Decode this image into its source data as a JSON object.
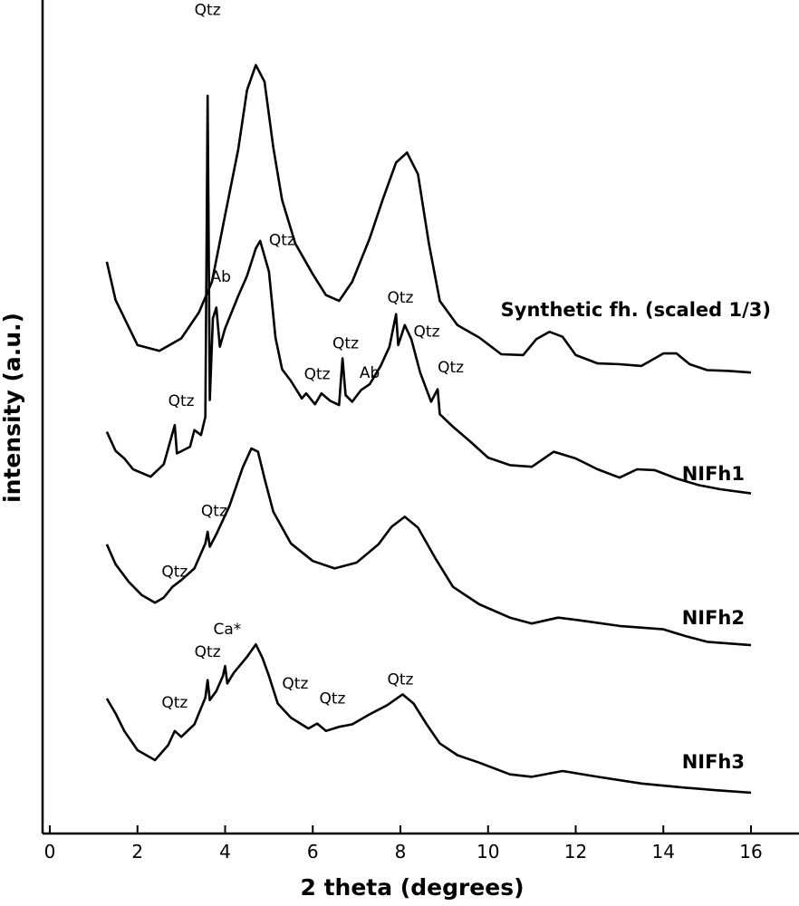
{
  "chart_data": {
    "type": "line",
    "xlabel": "2 theta (degrees)",
    "ylabel": "intensity (a.u.)",
    "xlim": [
      0,
      16
    ],
    "xticks": [
      0,
      2,
      4,
      6,
      8,
      10,
      12,
      14,
      16
    ],
    "xtick_labels": [
      "0",
      "2",
      "4",
      "6",
      "8",
      "10",
      "12",
      "14",
      "16"
    ],
    "y_units": "arbitrary offset intensity, 0 = bottom axis, 100 = top of plot",
    "grid": false,
    "series": [
      {
        "name": "Synthetic fh. (scaled 1/3)",
        "points": [
          [
            1.3,
            68.6
          ],
          [
            1.5,
            64.0
          ],
          [
            2.0,
            58.6
          ],
          [
            2.5,
            57.9
          ],
          [
            3.0,
            59.4
          ],
          [
            3.4,
            62.5
          ],
          [
            3.7,
            66.2
          ],
          [
            4.0,
            74.2
          ],
          [
            4.3,
            82.1
          ],
          [
            4.5,
            89.2
          ],
          [
            4.7,
            92.2
          ],
          [
            4.9,
            90.2
          ],
          [
            5.1,
            82.3
          ],
          [
            5.3,
            76.0
          ],
          [
            5.6,
            70.8
          ],
          [
            6.0,
            67.1
          ],
          [
            6.3,
            64.6
          ],
          [
            6.6,
            63.9
          ],
          [
            6.9,
            66.2
          ],
          [
            7.3,
            71.4
          ],
          [
            7.6,
            76.1
          ],
          [
            7.9,
            80.5
          ],
          [
            8.15,
            81.7
          ],
          [
            8.4,
            79.1
          ],
          [
            8.65,
            70.8
          ],
          [
            8.9,
            63.9
          ],
          [
            9.3,
            61.0
          ],
          [
            9.8,
            59.5
          ],
          [
            10.3,
            57.5
          ],
          [
            10.8,
            57.4
          ],
          [
            11.1,
            59.3
          ],
          [
            11.4,
            60.2
          ],
          [
            11.7,
            59.6
          ],
          [
            12.0,
            57.4
          ],
          [
            12.5,
            56.4
          ],
          [
            13.0,
            56.3
          ],
          [
            13.5,
            56.1
          ],
          [
            14.0,
            57.6
          ],
          [
            14.3,
            57.6
          ],
          [
            14.6,
            56.3
          ],
          [
            15.0,
            55.6
          ],
          [
            15.5,
            55.5
          ],
          [
            16.0,
            55.3
          ]
        ]
      },
      {
        "name": "NIFh1",
        "points": [
          [
            1.3,
            48.2
          ],
          [
            1.5,
            45.9
          ],
          [
            1.7,
            45.0
          ],
          [
            1.9,
            43.7
          ],
          [
            2.3,
            42.8
          ],
          [
            2.6,
            44.3
          ],
          [
            2.75,
            47.1
          ],
          [
            2.85,
            49.0
          ],
          [
            2.9,
            45.6
          ],
          [
            3.2,
            46.4
          ],
          [
            3.3,
            48.4
          ],
          [
            3.45,
            47.8
          ],
          [
            3.55,
            50.0
          ],
          [
            3.6,
            88.5
          ],
          [
            3.65,
            52.0
          ],
          [
            3.72,
            61.8
          ],
          [
            3.8,
            63.1
          ],
          [
            3.88,
            58.4
          ],
          [
            4.0,
            60.6
          ],
          [
            4.3,
            64.5
          ],
          [
            4.5,
            66.9
          ],
          [
            4.7,
            70.2
          ],
          [
            4.8,
            71.1
          ],
          [
            5.0,
            67.4
          ],
          [
            5.15,
            59.5
          ],
          [
            5.3,
            55.7
          ],
          [
            5.5,
            54.3
          ],
          [
            5.75,
            52.2
          ],
          [
            5.85,
            52.8
          ],
          [
            6.05,
            51.5
          ],
          [
            6.2,
            52.8
          ],
          [
            6.4,
            51.9
          ],
          [
            6.6,
            51.4
          ],
          [
            6.68,
            57.0
          ],
          [
            6.75,
            52.6
          ],
          [
            6.9,
            51.8
          ],
          [
            7.1,
            53.2
          ],
          [
            7.3,
            53.9
          ],
          [
            7.55,
            56.1
          ],
          [
            7.75,
            58.4
          ],
          [
            7.9,
            62.3
          ],
          [
            7.95,
            58.6
          ],
          [
            8.1,
            61.0
          ],
          [
            8.25,
            59.3
          ],
          [
            8.45,
            55.3
          ],
          [
            8.7,
            51.8
          ],
          [
            8.85,
            53.3
          ],
          [
            8.9,
            50.3
          ],
          [
            9.2,
            48.8
          ],
          [
            9.6,
            47.0
          ],
          [
            10.0,
            45.1
          ],
          [
            10.5,
            44.2
          ],
          [
            11.0,
            44.0
          ],
          [
            11.5,
            45.8
          ],
          [
            12.0,
            45.0
          ],
          [
            12.5,
            43.7
          ],
          [
            13.0,
            42.7
          ],
          [
            13.4,
            43.7
          ],
          [
            13.8,
            43.6
          ],
          [
            14.3,
            42.6
          ],
          [
            14.8,
            41.8
          ],
          [
            15.3,
            41.3
          ],
          [
            16.0,
            40.8
          ]
        ]
      },
      {
        "name": "NIFh2",
        "points": [
          [
            1.3,
            34.7
          ],
          [
            1.5,
            32.3
          ],
          [
            1.8,
            30.2
          ],
          [
            2.1,
            28.6
          ],
          [
            2.4,
            27.7
          ],
          [
            2.6,
            28.3
          ],
          [
            2.8,
            29.6
          ],
          [
            3.0,
            30.4
          ],
          [
            3.3,
            31.8
          ],
          [
            3.55,
            34.8
          ],
          [
            3.6,
            36.2
          ],
          [
            3.65,
            34.4
          ],
          [
            3.8,
            35.9
          ],
          [
            4.1,
            39.3
          ],
          [
            4.4,
            43.9
          ],
          [
            4.6,
            46.2
          ],
          [
            4.75,
            45.8
          ],
          [
            4.9,
            42.6
          ],
          [
            5.1,
            38.6
          ],
          [
            5.5,
            34.8
          ],
          [
            6.0,
            32.7
          ],
          [
            6.5,
            31.8
          ],
          [
            7.0,
            32.5
          ],
          [
            7.5,
            34.7
          ],
          [
            7.8,
            36.8
          ],
          [
            8.1,
            38.0
          ],
          [
            8.4,
            36.7
          ],
          [
            8.8,
            33.0
          ],
          [
            9.2,
            29.6
          ],
          [
            9.8,
            27.5
          ],
          [
            10.5,
            25.9
          ],
          [
            11.0,
            25.2
          ],
          [
            11.6,
            25.9
          ],
          [
            12.2,
            25.5
          ],
          [
            13.0,
            24.9
          ],
          [
            14.0,
            24.5
          ],
          [
            14.5,
            23.7
          ],
          [
            15.0,
            23.0
          ],
          [
            16.0,
            22.6
          ]
        ]
      },
      {
        "name": "NIFh3",
        "points": [
          [
            1.3,
            16.2
          ],
          [
            1.5,
            14.4
          ],
          [
            1.7,
            12.3
          ],
          [
            2.0,
            10.0
          ],
          [
            2.4,
            8.8
          ],
          [
            2.7,
            10.6
          ],
          [
            2.85,
            12.3
          ],
          [
            3.0,
            11.6
          ],
          [
            3.3,
            13.1
          ],
          [
            3.55,
            16.3
          ],
          [
            3.6,
            18.4
          ],
          [
            3.65,
            16.0
          ],
          [
            3.8,
            17.1
          ],
          [
            3.95,
            18.9
          ],
          [
            4.0,
            20.1
          ],
          [
            4.05,
            18.0
          ],
          [
            4.2,
            19.3
          ],
          [
            4.5,
            21.2
          ],
          [
            4.7,
            22.7
          ],
          [
            4.85,
            21.1
          ],
          [
            5.0,
            18.9
          ],
          [
            5.2,
            15.6
          ],
          [
            5.5,
            13.9
          ],
          [
            5.9,
            12.6
          ],
          [
            6.1,
            13.2
          ],
          [
            6.3,
            12.3
          ],
          [
            6.6,
            12.8
          ],
          [
            6.9,
            13.1
          ],
          [
            7.3,
            14.3
          ],
          [
            7.7,
            15.4
          ],
          [
            8.05,
            16.7
          ],
          [
            8.3,
            15.6
          ],
          [
            8.6,
            13.1
          ],
          [
            8.9,
            10.8
          ],
          [
            9.3,
            9.4
          ],
          [
            9.8,
            8.5
          ],
          [
            10.5,
            7.1
          ],
          [
            11.0,
            6.8
          ],
          [
            11.7,
            7.5
          ],
          [
            12.5,
            6.8
          ],
          [
            13.5,
            6.0
          ],
          [
            14.5,
            5.5
          ],
          [
            15.2,
            5.2
          ],
          [
            16.0,
            4.9
          ]
        ]
      }
    ],
    "series_labels": [
      "Synthetic fh. (scaled 1/3)",
      "NIFh1",
      "NIFh2",
      "NIFh3"
    ],
    "annotations": [
      {
        "text": "Qtz",
        "x": 3.6,
        "y": 98.2
      },
      {
        "text": "Ab",
        "x": 3.9,
        "y": 66.2
      },
      {
        "text": "Qtz",
        "x": 5.3,
        "y": 70.6
      },
      {
        "text": "Qtz",
        "x": 8.0,
        "y": 63.7
      },
      {
        "text": "Qtz",
        "x": 8.6,
        "y": 59.6
      },
      {
        "text": "Qtz",
        "x": 6.75,
        "y": 58.2
      },
      {
        "text": "Qtz",
        "x": 6.1,
        "y": 54.5
      },
      {
        "text": "Ab",
        "x": 7.3,
        "y": 54.7
      },
      {
        "text": "Qtz",
        "x": 9.15,
        "y": 55.3
      },
      {
        "text": "Qtz",
        "x": 3.0,
        "y": 51.3
      },
      {
        "text": "Qtz",
        "x": 3.75,
        "y": 38.1
      },
      {
        "text": "Qtz",
        "x": 2.85,
        "y": 30.8
      },
      {
        "text": "Qtz",
        "x": 3.6,
        "y": 21.2
      },
      {
        "text": "Ca*",
        "x": 4.05,
        "y": 23.9
      },
      {
        "text": "Qtz",
        "x": 5.6,
        "y": 17.4
      },
      {
        "text": "Qtz",
        "x": 6.45,
        "y": 15.6
      },
      {
        "text": "Qtz",
        "x": 8.0,
        "y": 17.9
      },
      {
        "text": "Qtz",
        "x": 2.85,
        "y": 15.1
      }
    ]
  }
}
